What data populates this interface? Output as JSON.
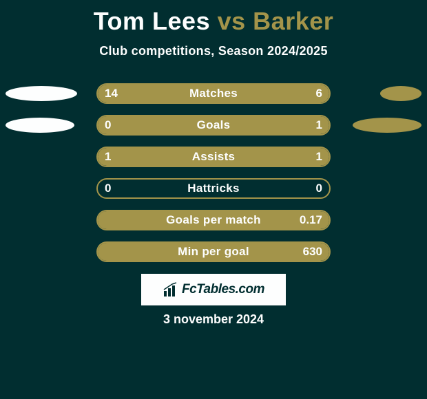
{
  "title": {
    "player1": "Tom Lees",
    "vs": "vs",
    "player2": "Barker",
    "player1_color": "#fdfefe",
    "vs_color": "#a3944a",
    "player2_color": "#a3944a",
    "fontsize": 36
  },
  "subtitle": {
    "text": "Club competitions, Season 2024/2025",
    "color": "#fdfefe",
    "fontsize": 18
  },
  "background_color": "#012e30",
  "bar_style": {
    "track_border_color": "#a3944a",
    "left_fill_color": "#a3944a",
    "right_fill_color": "#a3944a",
    "text_color": "#fdfefe",
    "track_width": 340,
    "track_height": 30,
    "border_radius": 16,
    "fontsize": 17
  },
  "ellipse_style": {
    "left_color": "#fdfefe",
    "right_color": "#a3944a",
    "height": 22
  },
  "bars": [
    {
      "label": "Matches",
      "left_val": "14",
      "right_val": "6",
      "left_num": 14,
      "right_num": 6,
      "left_fill_pct": 70,
      "right_fill_pct": 30,
      "show_left_ellipse": true,
      "show_right_ellipse": true,
      "left_ellipse_width": 104,
      "right_ellipse_width": 60
    },
    {
      "label": "Goals",
      "left_val": "0",
      "right_val": "1",
      "left_num": 0,
      "right_num": 1,
      "left_fill_pct": 0,
      "right_fill_pct": 100,
      "show_left_ellipse": true,
      "show_right_ellipse": true,
      "left_ellipse_width": 100,
      "right_ellipse_width": 100
    },
    {
      "label": "Assists",
      "left_val": "1",
      "right_val": "1",
      "left_num": 1,
      "right_num": 1,
      "left_fill_pct": 50,
      "right_fill_pct": 50,
      "show_left_ellipse": false,
      "show_right_ellipse": false,
      "left_ellipse_width": 0,
      "right_ellipse_width": 0
    },
    {
      "label": "Hattricks",
      "left_val": "0",
      "right_val": "0",
      "left_num": 0,
      "right_num": 0,
      "left_fill_pct": 0,
      "right_fill_pct": 0,
      "show_left_ellipse": false,
      "show_right_ellipse": false,
      "left_ellipse_width": 0,
      "right_ellipse_width": 0
    },
    {
      "label": "Goals per match",
      "left_val": "",
      "right_val": "0.17",
      "left_num": 0,
      "right_num": 0.17,
      "left_fill_pct": 0,
      "right_fill_pct": 100,
      "show_left_ellipse": false,
      "show_right_ellipse": false,
      "left_ellipse_width": 0,
      "right_ellipse_width": 0
    },
    {
      "label": "Min per goal",
      "left_val": "",
      "right_val": "630",
      "left_num": 0,
      "right_num": 630,
      "left_fill_pct": 0,
      "right_fill_pct": 100,
      "show_left_ellipse": false,
      "show_right_ellipse": false,
      "left_ellipse_width": 0,
      "right_ellipse_width": 0
    }
  ],
  "logo": {
    "text": "FcTables.com",
    "background": "#fdfefe",
    "text_color": "#012e30",
    "icon_color": "#012e30"
  },
  "date": {
    "text": "3 november 2024",
    "color": "#fdfefe",
    "fontsize": 18
  }
}
